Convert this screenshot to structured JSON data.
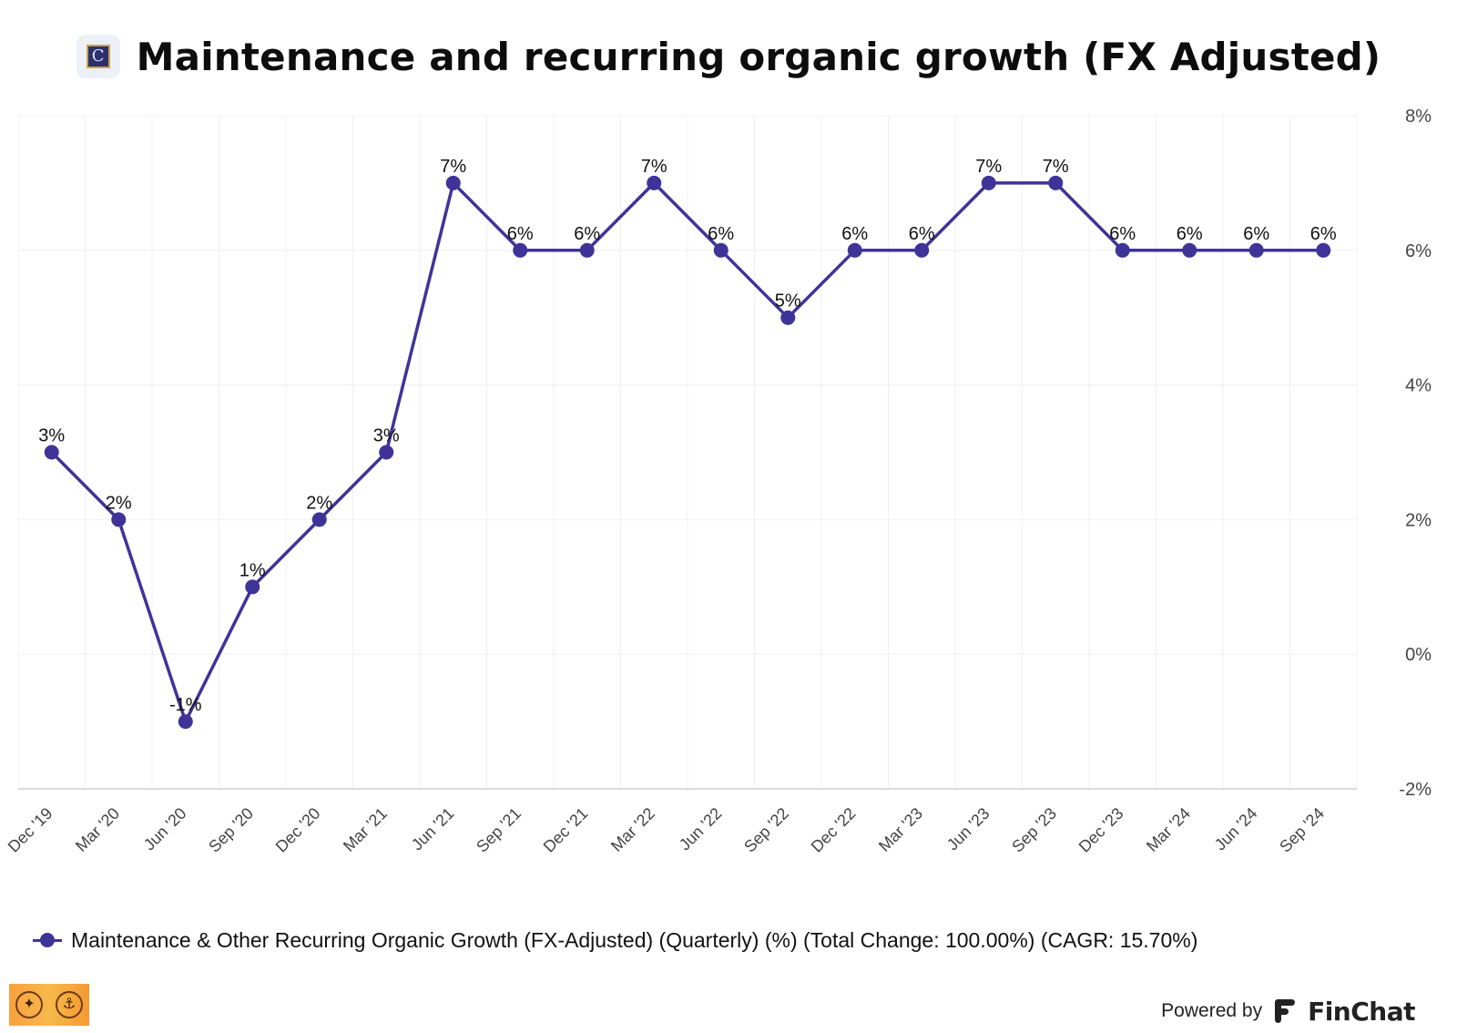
{
  "header": {
    "title": "Maintenance and recurring organic growth (FX Adjusted)",
    "logo_letter": "C"
  },
  "chart_data": {
    "type": "line",
    "title": "Maintenance and recurring organic growth (FX Adjusted)",
    "xlabel": "",
    "ylabel": "",
    "categories": [
      "Dec '19",
      "Mar '20",
      "Jun '20",
      "Sep '20",
      "Dec '20",
      "Mar '21",
      "Jun '21",
      "Sep '21",
      "Dec '21",
      "Mar '22",
      "Jun '22",
      "Sep '22",
      "Dec '22",
      "Mar '23",
      "Jun '23",
      "Sep '23",
      "Dec '23",
      "Mar '24",
      "Jun '24",
      "Sep '24"
    ],
    "series": [
      {
        "name": "Maintenance & Other Recurring Organic Growth (FX-Adjusted) (Quarterly) (%) (Total Change: 100.00%) (CAGR: 15.70%)",
        "values": [
          3,
          2,
          -1,
          1,
          2,
          3,
          7,
          6,
          6,
          7,
          6,
          5,
          6,
          6,
          7,
          7,
          6,
          6,
          6,
          6
        ],
        "data_labels": [
          "3%",
          "2%",
          "-1%",
          "1%",
          "2%",
          "3%",
          "7%",
          "6%",
          "6%",
          "7%",
          "6%",
          "5%",
          "6%",
          "6%",
          "7%",
          "7%",
          "6%",
          "6%",
          "6%",
          "6%"
        ],
        "color": "#3f3398"
      }
    ],
    "ylim": [
      -2,
      8
    ],
    "yticks": [
      -2,
      0,
      2,
      4,
      6,
      8
    ],
    "ytick_labels": [
      "-2%",
      "0%",
      "2%",
      "4%",
      "6%",
      "8%"
    ],
    "y_axis_side": "right",
    "grid": true,
    "legend_position": "bottom-left"
  },
  "legend": {
    "label": "Maintenance & Other Recurring Organic Growth (FX-Adjusted) (Quarterly) (%) (Total Change: 100.00%) (CAGR: 15.70%)"
  },
  "footer": {
    "powered_by": "Powered by",
    "brand": "FinChat"
  },
  "colors": {
    "series": "#3f3398",
    "grid": "#f0f0f0",
    "axis_text": "#444444"
  }
}
